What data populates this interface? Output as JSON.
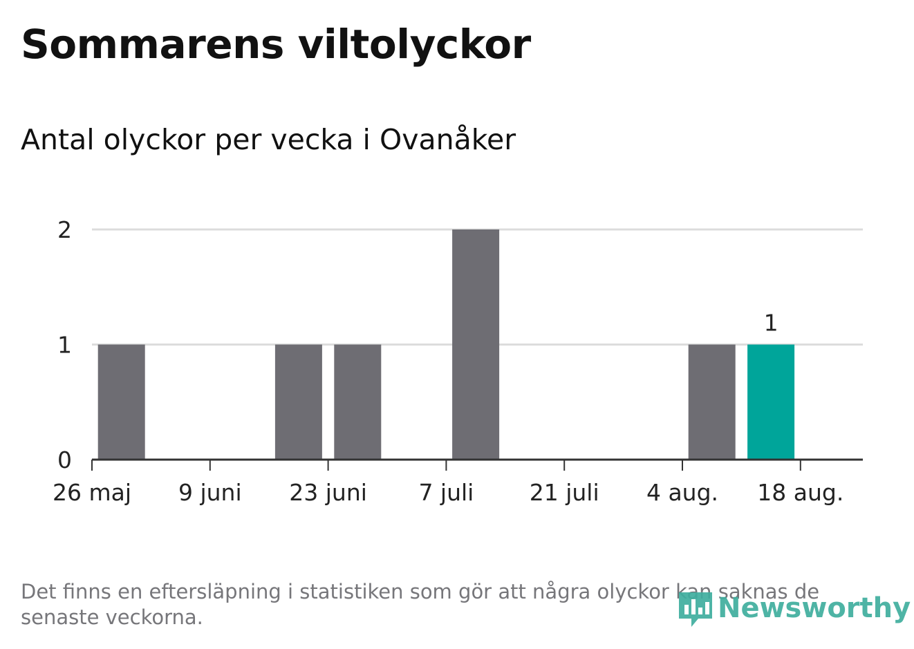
{
  "title": "Sommarens viltolyckor",
  "subtitle": "Antal olyckor per vecka i Ovanåker",
  "note": "Det finns en eftersläpning i statistiken som gör att några olyckor kan saknas de senaste veckorna.",
  "brand": {
    "name": "Newsworthy",
    "icon": "newsworthy-logo-icon"
  },
  "colors": {
    "bar": "#6e6d73",
    "highlight": "#00a59a",
    "grid": "#dcdcdc",
    "axis": "#333333"
  },
  "chart_data": {
    "type": "bar",
    "x": [
      "2019-05-26",
      "2019-06-02",
      "2019-06-09",
      "2019-06-16",
      "2019-06-23",
      "2019-06-30",
      "2019-07-07",
      "2019-07-14",
      "2019-07-21",
      "2019-07-28",
      "2019-08-04",
      "2019-08-11",
      "2019-08-18"
    ],
    "values": [
      1,
      0,
      0,
      1,
      1,
      0,
      2,
      0,
      0,
      0,
      1,
      1,
      null
    ],
    "highlight_index": 11,
    "highlight_label": "1",
    "ylim": [
      0,
      2
    ],
    "yticks": [
      "0",
      "1",
      "2"
    ],
    "xticks": [
      "26 maj",
      "9 juni",
      "23 juni",
      "7 juli",
      "21 juli",
      "4 aug.",
      "18 aug."
    ],
    "grid": true
  }
}
